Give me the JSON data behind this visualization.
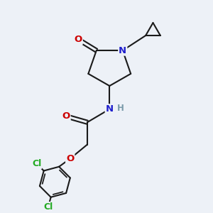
{
  "bg_color": "#edf1f7",
  "bond_color": "#1a1a1a",
  "bond_width": 1.5,
  "atom_colors": {
    "N": "#2020cc",
    "O": "#cc0000",
    "Cl": "#22aa22",
    "H": "#7a9aaa",
    "C": "#1a1a1a"
  },
  "font_size": 9.5,
  "figsize": [
    3.0,
    3.0
  ],
  "dpi": 100
}
